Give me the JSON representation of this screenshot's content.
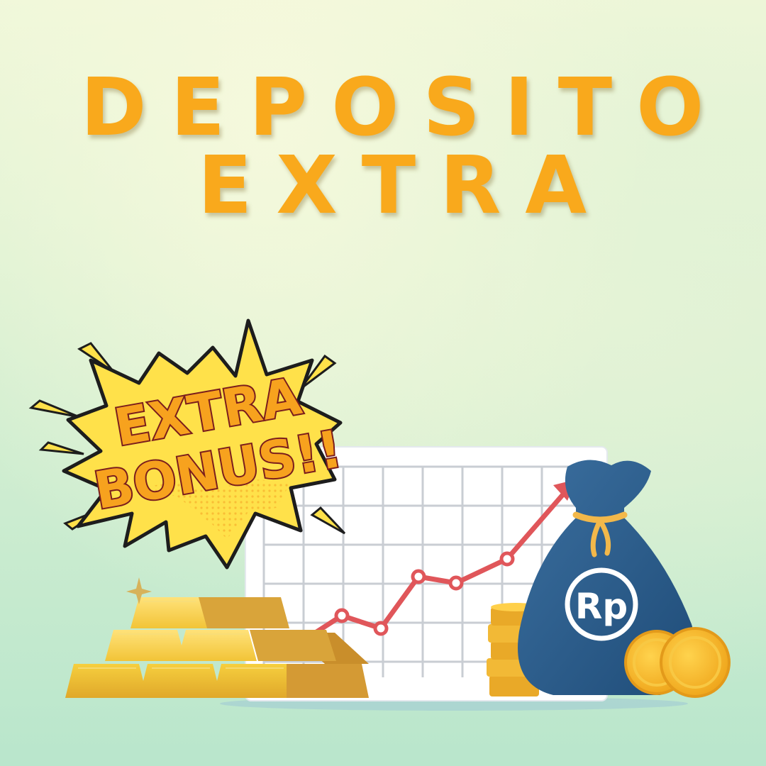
{
  "heading": {
    "line1": "DEPOSITO",
    "line2": "EXTRA"
  },
  "burst": {
    "line1": "EXTRA",
    "line2": "BONUS!!"
  },
  "bag": {
    "currency": "Rp"
  },
  "colors": {
    "heading": "#f9a91c",
    "trend_line": "#e0565a",
    "bag": "#2f6190",
    "gold": "#f2c437",
    "burst": "#ffe14a"
  },
  "icons": [
    "starburst",
    "gold-bars",
    "growth-chart",
    "coin-stack",
    "money-bag",
    "coins",
    "sparkle"
  ]
}
